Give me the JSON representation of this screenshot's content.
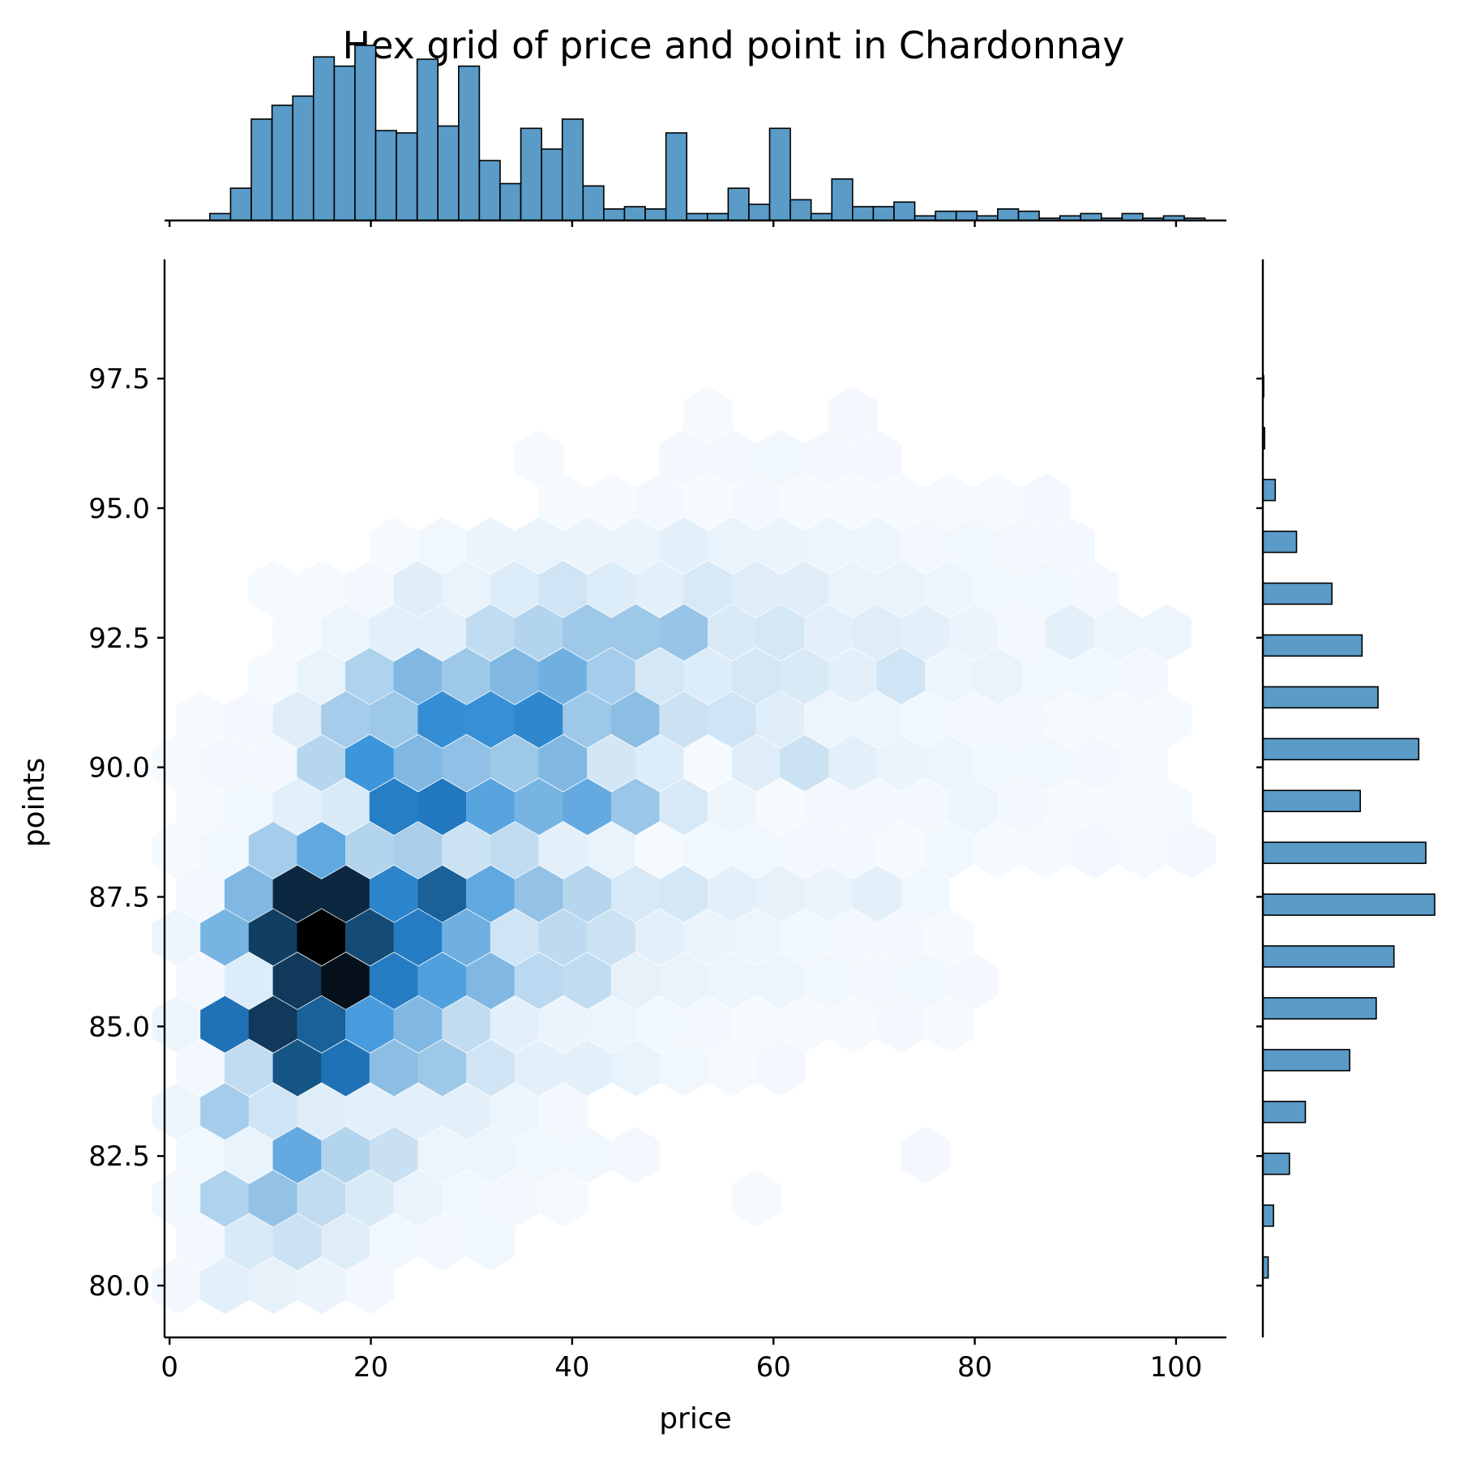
{
  "chart_data": {
    "type": "hexbin-joint",
    "title": "Hex grid of price and point in Chardonnay",
    "xlabel": "price",
    "ylabel": "points",
    "xlim": [
      -0.5,
      105
    ],
    "ylim": [
      79.0,
      99.8
    ],
    "xticks": [
      0,
      20,
      40,
      60,
      80,
      100
    ],
    "xtick_labels": [
      "0",
      "20",
      "40",
      "60",
      "80",
      "100"
    ],
    "yticks": [
      80.0,
      82.5,
      85.0,
      87.5,
      90.0,
      92.5,
      95.0,
      97.5
    ],
    "ytick_labels": [
      "80.0",
      "82.5",
      "85.0",
      "87.5",
      "90.0",
      "92.5",
      "95.0",
      "97.5"
    ],
    "colormap_light": "#f7fbff",
    "colormap_dark": "#000000",
    "bar_color": "#5a9bc8",
    "bar_edge_color": "#000000",
    "hex_grid": {
      "x_start": 0.7,
      "x_step": 4.8,
      "y_start": 80.0,
      "row_step": 0.84,
      "rows": [
        [
          0.02,
          0.08,
          0.07,
          0.05,
          0.02
        ],
        [
          0.02,
          0.12,
          0.17,
          0.1,
          0.03,
          0.02,
          0.03
        ],
        [
          0.03,
          0.25,
          0.33,
          0.2,
          0.12,
          0.06,
          0.03,
          0.02,
          0.01,
          0,
          0,
          0,
          0.01
        ],
        [
          0.03,
          0.06,
          0.45,
          0.24,
          0.18,
          0.04,
          0.04,
          0.03,
          0.03,
          0.02,
          0,
          0,
          0,
          0,
          0,
          0.02
        ],
        [
          0.04,
          0.28,
          0.16,
          0.1,
          0.08,
          0.08,
          0.08,
          0.04,
          0.02
        ],
        [
          0.02,
          0.2,
          0.82,
          0.72,
          0.35,
          0.3,
          0.16,
          0.08,
          0.08,
          0.06,
          0.03,
          0.01,
          0.02
        ],
        [
          0.04,
          0.72,
          0.87,
          0.78,
          0.52,
          0.38,
          0.2,
          0.08,
          0.05,
          0.04,
          0.03,
          0.02,
          0.01,
          0.01,
          0.01,
          0.02,
          0.01
        ],
        [
          0.02,
          0.11,
          0.87,
          0.96,
          0.68,
          0.5,
          0.38,
          0.22,
          0.2,
          0.07,
          0.06,
          0.04,
          0.04,
          0.03,
          0.02,
          0.03,
          0.02
        ],
        [
          0.04,
          0.4,
          0.86,
          1.0,
          0.84,
          0.68,
          0.42,
          0.16,
          0.21,
          0.17,
          0.08,
          0.05,
          0.04,
          0.03,
          0.02,
          0.02,
          0.01
        ],
        [
          0.02,
          0.38,
          0.9,
          0.9,
          0.64,
          0.78,
          0.46,
          0.33,
          0.23,
          0.13,
          0.14,
          0.08,
          0.07,
          0.05,
          0.08,
          0.03
        ],
        [
          0.01,
          0.03,
          0.28,
          0.46,
          0.24,
          0.27,
          0.17,
          0.2,
          0.08,
          0.06,
          0.01,
          0.03,
          0.03,
          0.02,
          0.02,
          0.01,
          0.03,
          0.01,
          0.01,
          0.02,
          0.01,
          0.02
        ],
        [
          0.01,
          0.03,
          0.08,
          0.12,
          0.67,
          0.7,
          0.48,
          0.4,
          0.45,
          0.31,
          0.13,
          0.04,
          0.01,
          0.02,
          0.02,
          0.02,
          0.04,
          0.02,
          0.01,
          0.01,
          0.01
        ],
        [
          0.01,
          0.02,
          0.02,
          0.23,
          0.55,
          0.38,
          0.34,
          0.3,
          0.38,
          0.15,
          0.11,
          0.01,
          0.1,
          0.17,
          0.08,
          0.05,
          0.04,
          0.03,
          0.03,
          0.02,
          0.01
        ],
        [
          0.01,
          0.02,
          0.1,
          0.28,
          0.3,
          0.59,
          0.58,
          0.62,
          0.3,
          0.35,
          0.17,
          0.16,
          0.1,
          0.04,
          0.04,
          0.03,
          0.02,
          0.02,
          0.01,
          0.01,
          0.01
        ],
        [
          0,
          0,
          0.01,
          0.06,
          0.25,
          0.38,
          0.3,
          0.38,
          0.42,
          0.28,
          0.14,
          0.11,
          0.14,
          0.12,
          0.08,
          0.16,
          0.04,
          0.06,
          0.03,
          0.03,
          0.02
        ],
        [
          0,
          0,
          0.01,
          0.04,
          0.08,
          0.08,
          0.2,
          0.24,
          0.3,
          0.3,
          0.32,
          0.12,
          0.14,
          0.08,
          0.1,
          0.08,
          0.05,
          0.02,
          0.08,
          0.04,
          0.04
        ],
        [
          0,
          0,
          0.01,
          0.01,
          0.02,
          0.09,
          0.06,
          0.11,
          0.16,
          0.11,
          0.08,
          0.13,
          0.1,
          0.09,
          0.06,
          0.06,
          0.04,
          0.03,
          0.03,
          0.02
        ],
        [
          0,
          0,
          0,
          0,
          0.01,
          0.03,
          0.05,
          0.06,
          0.05,
          0.05,
          0.08,
          0.06,
          0.05,
          0.04,
          0.04,
          0.02,
          0.03,
          0.02,
          0.02
        ],
        [
          0,
          0,
          0,
          0,
          0,
          0,
          0,
          0,
          0.01,
          0.01,
          0.02,
          0.01,
          0.02,
          0.01,
          0.01,
          0.01,
          0.01,
          0.01,
          0.02
        ],
        [
          0,
          0,
          0,
          0,
          0,
          0,
          0,
          0.01,
          0,
          0,
          0.02,
          0.02,
          0.03,
          0.02,
          0.02
        ],
        [
          0,
          0,
          0,
          0,
          0,
          0,
          0,
          0,
          0,
          0,
          0,
          0.01,
          0,
          0,
          0.02
        ]
      ]
    },
    "price_histogram": {
      "bin_start": 4.0,
      "bin_width": 2.06,
      "counts": [
        3,
        14,
        44,
        50,
        54,
        71,
        67,
        76,
        39,
        38,
        70,
        41,
        67,
        26,
        16,
        40,
        31,
        44,
        15,
        5,
        6,
        5,
        38,
        3,
        3,
        14,
        7,
        40,
        9,
        3,
        18,
        6,
        6,
        8,
        2,
        4,
        4,
        2,
        5,
        4,
        1,
        2,
        3,
        1,
        3,
        1,
        2,
        1
      ]
    },
    "points_histogram": {
      "bins": [
        {
          "points": 80,
          "count": 3
        },
        {
          "points": 81,
          "count": 6
        },
        {
          "points": 82,
          "count": 15
        },
        {
          "points": 83,
          "count": 24
        },
        {
          "points": 84,
          "count": 49
        },
        {
          "points": 85,
          "count": 64
        },
        {
          "points": 86,
          "count": 74
        },
        {
          "points": 87,
          "count": 97
        },
        {
          "points": 88,
          "count": 92
        },
        {
          "points": 89,
          "count": 55
        },
        {
          "points": 90,
          "count": 88
        },
        {
          "points": 91,
          "count": 65
        },
        {
          "points": 92,
          "count": 56
        },
        {
          "points": 93,
          "count": 39
        },
        {
          "points": 94,
          "count": 19
        },
        {
          "points": 95,
          "count": 7
        },
        {
          "points": 96,
          "count": 1
        },
        {
          "points": 97,
          "count": 0.5
        }
      ]
    }
  }
}
